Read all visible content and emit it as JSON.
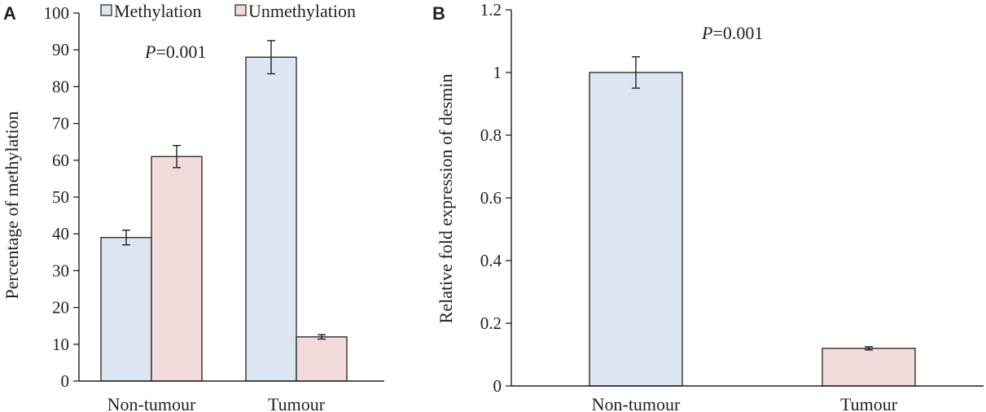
{
  "chart_data": [
    {
      "panel": "A",
      "type": "bar",
      "ylabel": "Percentage of methylation",
      "xlabel": "",
      "ylim": [
        0,
        100
      ],
      "yticks": [
        "0",
        "10",
        "20",
        "30",
        "40",
        "50",
        "60",
        "70",
        "80",
        "90",
        "100"
      ],
      "categories": [
        "Non-tumour",
        "Tumour"
      ],
      "series": [
        {
          "name": "Methylation",
          "color": "#dce6f2",
          "values": [
            39,
            88
          ],
          "errors": [
            2,
            4.5
          ]
        },
        {
          "name": "Unmethylation",
          "color": "#f2dcdb",
          "values": [
            61,
            12
          ],
          "errors": [
            3,
            0.6
          ]
        }
      ],
      "legend": "top",
      "annotation": {
        "italic": "P",
        "rest": "=0.001"
      }
    },
    {
      "panel": "B",
      "type": "bar",
      "ylabel": "Relative fold expression of desmin",
      "xlabel": "",
      "ylim": [
        0,
        1.2
      ],
      "yticks": [
        "0",
        "0.2",
        "0.4",
        "0.6",
        "0.8",
        "1",
        "1.2"
      ],
      "categories": [
        "Non-tumour",
        "Tumour"
      ],
      "series": [
        {
          "name": "",
          "colors": [
            "#dce6f2",
            "#f2dcdb"
          ],
          "values": [
            1.0,
            0.12
          ],
          "errors": [
            0.05,
            0.005
          ]
        }
      ],
      "annotation": {
        "italic": "P",
        "rest": "=0.001"
      }
    }
  ]
}
